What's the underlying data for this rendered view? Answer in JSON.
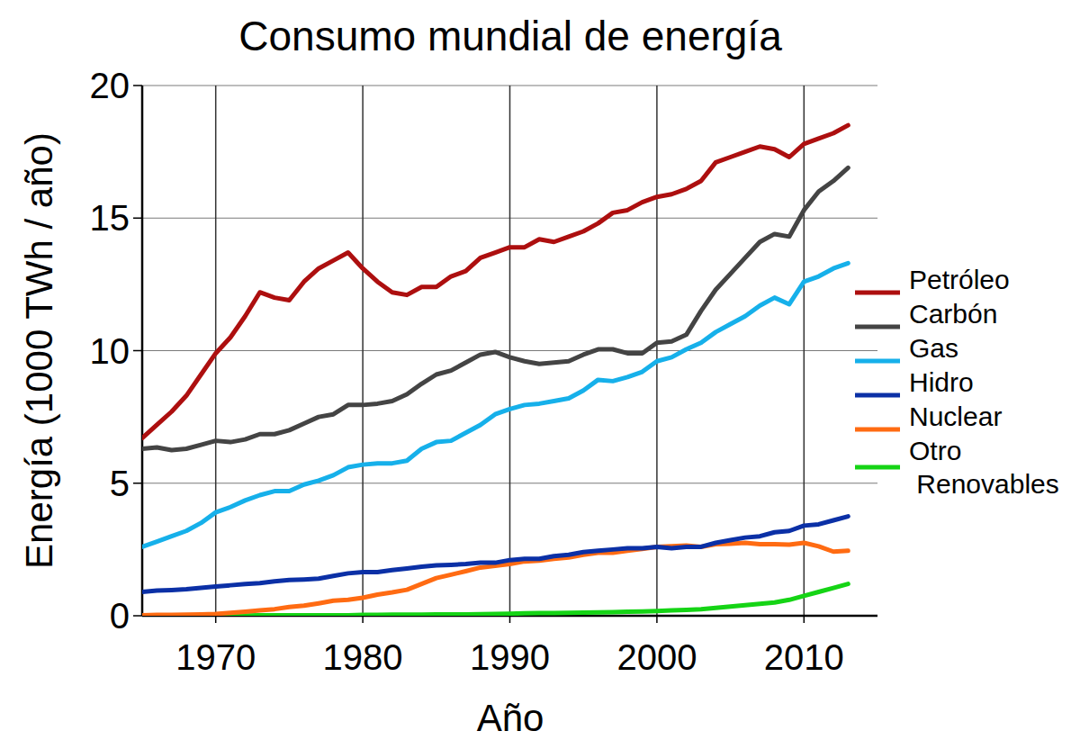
{
  "chart_data": {
    "type": "line",
    "title": "Consumo mundial de energía",
    "x_label": "Año",
    "y_label": "Energía (1000 TWh / año)",
    "x": [
      1965,
      1966,
      1967,
      1968,
      1969,
      1970,
      1971,
      1972,
      1973,
      1974,
      1975,
      1976,
      1977,
      1978,
      1979,
      1980,
      1981,
      1982,
      1983,
      1984,
      1985,
      1986,
      1987,
      1988,
      1989,
      1990,
      1991,
      1992,
      1993,
      1994,
      1995,
      1996,
      1997,
      1998,
      1999,
      2000,
      2001,
      2002,
      2003,
      2004,
      2005,
      2006,
      2007,
      2008,
      2009,
      2010,
      2011,
      2012,
      2013
    ],
    "xlim": [
      1965,
      2015
    ],
    "xticks": [
      1970,
      1980,
      1990,
      2000,
      2010
    ],
    "ylim": [
      0,
      20
    ],
    "yticks": [
      0,
      5,
      10,
      15,
      20
    ],
    "grid": true,
    "legend": "right",
    "series": [
      {
        "name": "Petróleo",
        "color": "#ad0f0f",
        "values": [
          6.7,
          7.2,
          7.7,
          8.3,
          9.1,
          9.9,
          10.5,
          11.3,
          12.2,
          12.0,
          11.9,
          12.6,
          13.1,
          13.4,
          13.7,
          13.1,
          12.6,
          12.2,
          12.1,
          12.4,
          12.4,
          12.8,
          13.0,
          13.5,
          13.7,
          13.9,
          13.9,
          14.2,
          14.1,
          14.3,
          14.5,
          14.8,
          15.2,
          15.3,
          15.6,
          15.8,
          15.9,
          16.1,
          16.4,
          17.1,
          17.3,
          17.5,
          17.7,
          17.6,
          17.3,
          17.8,
          18.0,
          18.2,
          18.5
        ]
      },
      {
        "name": "Carbón",
        "color": "#444444",
        "values": [
          6.3,
          6.35,
          6.25,
          6.3,
          6.45,
          6.6,
          6.55,
          6.65,
          6.85,
          6.85,
          7.0,
          7.25,
          7.5,
          7.6,
          7.95,
          7.95,
          8.0,
          8.1,
          8.35,
          8.75,
          9.1,
          9.25,
          9.55,
          9.85,
          9.95,
          9.75,
          9.6,
          9.5,
          9.55,
          9.6,
          9.85,
          10.05,
          10.05,
          9.9,
          9.9,
          10.3,
          10.35,
          10.6,
          11.5,
          12.3,
          12.9,
          13.5,
          14.1,
          14.4,
          14.3,
          15.3,
          16.0,
          16.4,
          16.9
        ]
      },
      {
        "name": "Gas",
        "color": "#16b0ea",
        "values": [
          2.6,
          2.8,
          3.0,
          3.2,
          3.5,
          3.9,
          4.1,
          4.35,
          4.55,
          4.7,
          4.7,
          4.95,
          5.1,
          5.3,
          5.6,
          5.7,
          5.75,
          5.75,
          5.85,
          6.3,
          6.55,
          6.6,
          6.9,
          7.2,
          7.6,
          7.8,
          7.95,
          8.0,
          8.1,
          8.2,
          8.5,
          8.9,
          8.85,
          9.0,
          9.2,
          9.6,
          9.75,
          10.05,
          10.3,
          10.7,
          11.0,
          11.3,
          11.7,
          12.0,
          11.75,
          12.6,
          12.8,
          13.1,
          13.3
        ]
      },
      {
        "name": "Hidro",
        "color": "#0b30a6",
        "values": [
          0.9,
          0.95,
          0.97,
          1.0,
          1.05,
          1.1,
          1.15,
          1.2,
          1.23,
          1.3,
          1.35,
          1.37,
          1.4,
          1.5,
          1.6,
          1.65,
          1.65,
          1.72,
          1.78,
          1.85,
          1.9,
          1.92,
          1.95,
          2.0,
          2.0,
          2.1,
          2.15,
          2.15,
          2.25,
          2.3,
          2.4,
          2.45,
          2.5,
          2.55,
          2.55,
          2.6,
          2.55,
          2.6,
          2.6,
          2.75,
          2.85,
          2.95,
          3.0,
          3.15,
          3.2,
          3.4,
          3.45,
          3.6,
          3.75
        ]
      },
      {
        "name": "Nuclear",
        "color": "#ff6b12",
        "values": [
          0.02,
          0.03,
          0.03,
          0.04,
          0.05,
          0.07,
          0.11,
          0.15,
          0.2,
          0.25,
          0.33,
          0.38,
          0.47,
          0.57,
          0.6,
          0.68,
          0.8,
          0.88,
          0.98,
          1.2,
          1.42,
          1.55,
          1.68,
          1.82,
          1.88,
          1.95,
          2.05,
          2.08,
          2.15,
          2.2,
          2.3,
          2.38,
          2.38,
          2.45,
          2.52,
          2.6,
          2.62,
          2.65,
          2.6,
          2.7,
          2.72,
          2.75,
          2.7,
          2.7,
          2.68,
          2.75,
          2.62,
          2.42,
          2.45
        ]
      },
      {
        "name": "Otro Renovables",
        "color": "#15d415",
        "values": [
          0.01,
          0.01,
          0.01,
          0.01,
          0.01,
          0.01,
          0.01,
          0.01,
          0.02,
          0.02,
          0.02,
          0.02,
          0.02,
          0.02,
          0.02,
          0.03,
          0.03,
          0.04,
          0.04,
          0.04,
          0.05,
          0.05,
          0.05,
          0.06,
          0.07,
          0.08,
          0.09,
          0.1,
          0.1,
          0.11,
          0.12,
          0.13,
          0.14,
          0.15,
          0.16,
          0.18,
          0.2,
          0.22,
          0.25,
          0.3,
          0.35,
          0.4,
          0.45,
          0.5,
          0.6,
          0.75,
          0.9,
          1.05,
          1.2
        ]
      }
    ]
  }
}
